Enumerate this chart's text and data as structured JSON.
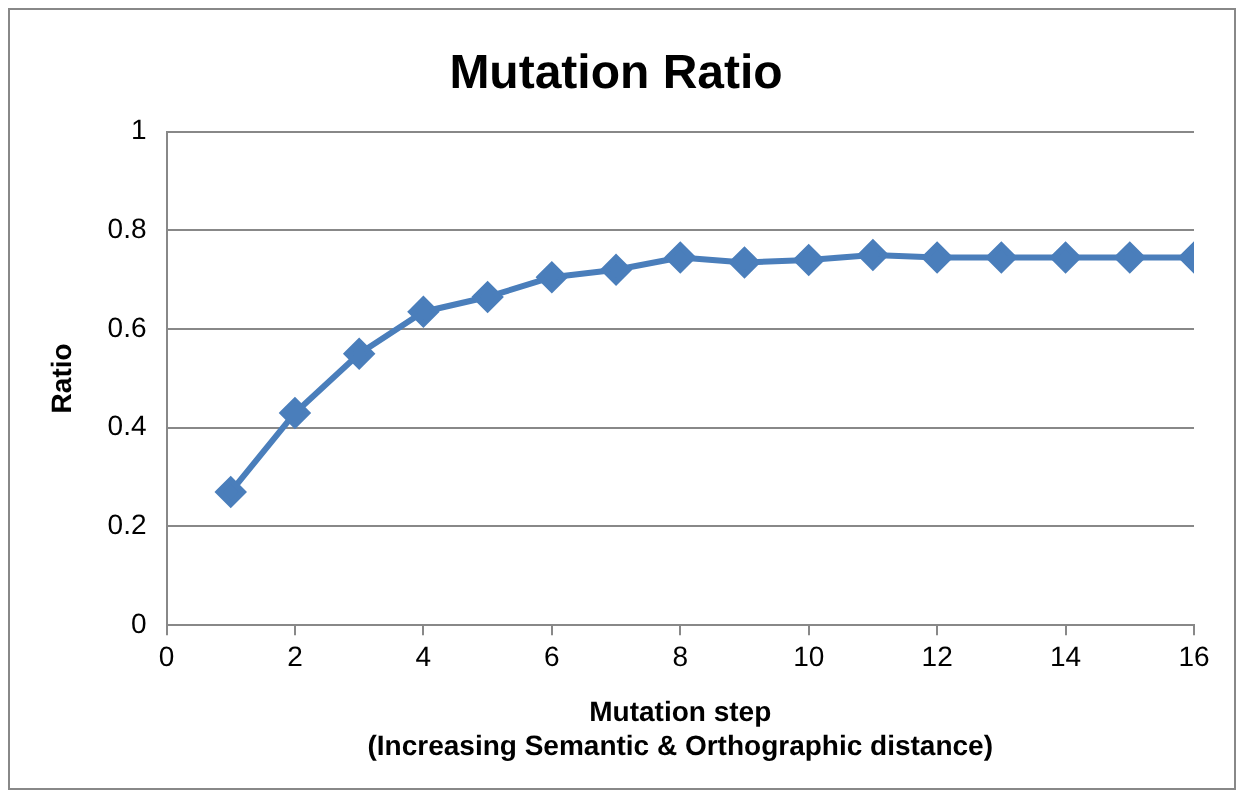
{
  "chart_data": {
    "type": "line",
    "title": "Mutation Ratio",
    "xlabel": "Mutation step\n(Increasing Semantic & Orthographic distance)",
    "ylabel": "Ratio",
    "x": [
      1,
      2,
      3,
      4,
      5,
      6,
      7,
      8,
      9,
      10,
      11,
      12,
      13,
      14,
      15,
      16
    ],
    "series": [
      {
        "color": "#4a7ebb",
        "values": [
          0.27,
          0.43,
          0.55,
          0.635,
          0.665,
          0.705,
          0.72,
          0.745,
          0.735,
          0.74,
          0.75,
          0.745,
          0.745,
          0.745,
          0.745,
          0.745
        ]
      }
    ],
    "xlim": [
      0,
      16
    ],
    "xticks": [
      0,
      2,
      4,
      6,
      8,
      10,
      12,
      14,
      16
    ],
    "ylim": [
      0,
      1
    ],
    "yticks": [
      0,
      0.2,
      0.4,
      0.6,
      0.8,
      1
    ],
    "grid": "y",
    "legend": false,
    "marker": "diamond",
    "line_style": "solid"
  }
}
